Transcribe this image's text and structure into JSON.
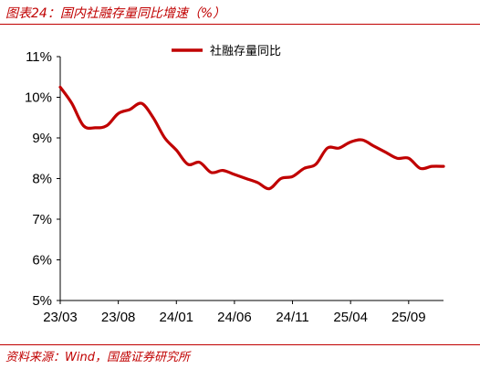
{
  "figure": {
    "title": "图表24：国内社融存量同比增速（%）",
    "source": "资料来源：Wind，国盛证券研究所"
  },
  "colors": {
    "accent": "#c00000",
    "series": "#c00000"
  },
  "chart_data": {
    "type": "line",
    "title": "",
    "xlabel": "",
    "ylabel": "",
    "ylim": [
      5,
      11
    ],
    "yticks": [
      "5%",
      "6%",
      "7%",
      "8%",
      "9%",
      "10%",
      "11%"
    ],
    "xticks": [
      "23/03",
      "23/08",
      "24/01",
      "24/06",
      "24/11",
      "25/04",
      "25/09"
    ],
    "grid": false,
    "legend": "top-center",
    "x": [
      "23/03",
      "23/04",
      "23/05",
      "23/06",
      "23/07",
      "23/08",
      "23/09",
      "23/10",
      "23/11",
      "23/12",
      "24/01",
      "24/02",
      "24/03",
      "24/04",
      "24/05",
      "24/06",
      "24/07",
      "24/08",
      "24/09",
      "24/10",
      "24/11",
      "24/12",
      "25/01",
      "25/02",
      "25/03",
      "25/04",
      "25/05",
      "25/06",
      "25/07",
      "25/08",
      "25/09",
      "25/10",
      "25/11",
      "25/12"
    ],
    "series": [
      {
        "name": "社融存量同比",
        "values": [
          10.25,
          9.85,
          9.3,
          9.25,
          9.3,
          9.6,
          9.7,
          9.85,
          9.5,
          9.0,
          8.7,
          8.35,
          8.4,
          8.15,
          8.2,
          8.1,
          8.0,
          7.9,
          7.75,
          8.0,
          8.05,
          8.25,
          8.35,
          8.75,
          8.75,
          8.9,
          8.95,
          8.8,
          8.65,
          8.5,
          8.5,
          8.25,
          8.3,
          8.3
        ]
      }
    ]
  }
}
